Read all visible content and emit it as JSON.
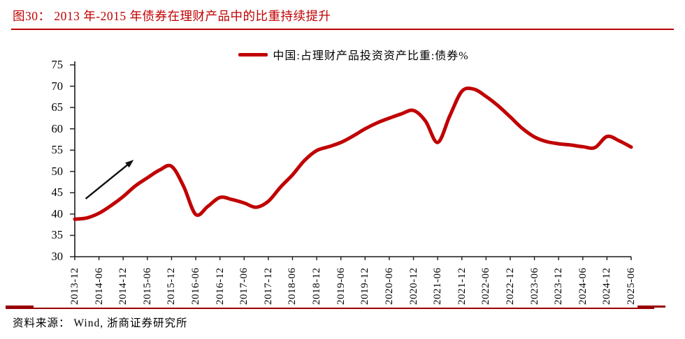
{
  "figure": {
    "title": "图30：  2013 年-2015 年债券在理财产品中的比重持续提升",
    "source": "资料来源： Wind, 浙商证券研究所"
  },
  "colors": {
    "series_red": "#C00000",
    "title_red": "#C00000",
    "rule_dark_red": "#990000",
    "axis_black": "#1a1a1a",
    "annotation_black": "#111111"
  },
  "chart_data": {
    "type": "line",
    "title": "图30：2013 年-2015 年债券在理财产品中的比重持续提升",
    "legend_label": "中国:占理财产品投资资产比重:债券%",
    "legend_position": "top-center",
    "grid": false,
    "ylim": [
      30,
      75
    ],
    "y_ticks": [
      75,
      70,
      65,
      60,
      55,
      50,
      45,
      40,
      35,
      30
    ],
    "x_tick_labels": [
      "2013-12",
      "2014-06",
      "2014-12",
      "2015-06",
      "2015-12",
      "2016-06",
      "2016-12",
      "2017-06",
      "2017-12",
      "2018-06",
      "2018-12",
      "2019-06",
      "2019-12",
      "2020-06",
      "2020-12",
      "2021-06",
      "2021-12",
      "2022-06",
      "2022-12",
      "2023-06",
      "2023-12",
      "2024-06",
      "2024-12",
      "2025-06"
    ],
    "series": [
      {
        "name": "中国:占理财产品投资资产比重:债券%",
        "color": "#C00000",
        "points": [
          {
            "date": "2013-12",
            "value": 38.8
          },
          {
            "date": "2014-03",
            "value": 39.1
          },
          {
            "date": "2014-06",
            "value": 40.2
          },
          {
            "date": "2014-09",
            "value": 42.0
          },
          {
            "date": "2014-12",
            "value": 44.1
          },
          {
            "date": "2015-03",
            "value": 46.6
          },
          {
            "date": "2015-06",
            "value": 48.5
          },
          {
            "date": "2015-09",
            "value": 50.3
          },
          {
            "date": "2015-12",
            "value": 51.2
          },
          {
            "date": "2016-03",
            "value": 46.5
          },
          {
            "date": "2016-06",
            "value": 39.9
          },
          {
            "date": "2016-09",
            "value": 41.8
          },
          {
            "date": "2016-12",
            "value": 43.9
          },
          {
            "date": "2017-03",
            "value": 43.4
          },
          {
            "date": "2017-06",
            "value": 42.6
          },
          {
            "date": "2017-09",
            "value": 41.6
          },
          {
            "date": "2017-12",
            "value": 43.0
          },
          {
            "date": "2018-03",
            "value": 46.3
          },
          {
            "date": "2018-06",
            "value": 49.2
          },
          {
            "date": "2018-09",
            "value": 52.6
          },
          {
            "date": "2018-12",
            "value": 54.9
          },
          {
            "date": "2019-03",
            "value": 55.8
          },
          {
            "date": "2019-06",
            "value": 56.8
          },
          {
            "date": "2019-09",
            "value": 58.3
          },
          {
            "date": "2019-12",
            "value": 60.0
          },
          {
            "date": "2020-03",
            "value": 61.4
          },
          {
            "date": "2020-06",
            "value": 62.5
          },
          {
            "date": "2020-09",
            "value": 63.5
          },
          {
            "date": "2020-12",
            "value": 64.3
          },
          {
            "date": "2021-03",
            "value": 61.8
          },
          {
            "date": "2021-06",
            "value": 56.8
          },
          {
            "date": "2021-09",
            "value": 63.0
          },
          {
            "date": "2021-12",
            "value": 68.8
          },
          {
            "date": "2022-03",
            "value": 69.3
          },
          {
            "date": "2022-06",
            "value": 67.6
          },
          {
            "date": "2022-09",
            "value": 65.4
          },
          {
            "date": "2022-12",
            "value": 62.8
          },
          {
            "date": "2023-03",
            "value": 60.1
          },
          {
            "date": "2023-06",
            "value": 58.1
          },
          {
            "date": "2023-09",
            "value": 57.0
          },
          {
            "date": "2023-12",
            "value": 56.5
          },
          {
            "date": "2024-03",
            "value": 56.2
          },
          {
            "date": "2024-06",
            "value": 55.8
          },
          {
            "date": "2024-09",
            "value": 55.6
          },
          {
            "date": "2024-12",
            "value": 58.2
          },
          {
            "date": "2025-03",
            "value": 57.2
          },
          {
            "date": "2025-06",
            "value": 55.7
          }
        ]
      }
    ],
    "annotation_arrow": {
      "from": {
        "quarter_index": 0.9,
        "value": 43.6
      },
      "to": {
        "quarter_index": 4.6,
        "value": 52.1
      }
    }
  }
}
